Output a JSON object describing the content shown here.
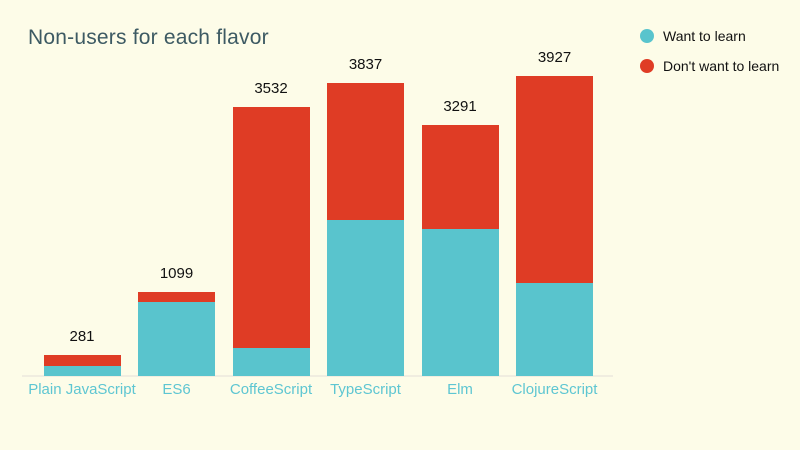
{
  "header": {
    "title": "Non-users for each flavor"
  },
  "legend": {
    "position": "top-right",
    "items": [
      {
        "label": "Want to learn",
        "color": "#59c4cd"
      },
      {
        "label": "Don't want to learn",
        "color": "#df3c25"
      }
    ]
  },
  "chart_data": {
    "type": "bar",
    "stacked": true,
    "title": "Non-users for each flavor",
    "categories": [
      "Plain JavaScript",
      "ES6",
      "CoffeeScript",
      "TypeScript",
      "Elm",
      "ClojureScript"
    ],
    "series": [
      {
        "name": "Want to learn",
        "color": "#59c4cd",
        "values": [
          135,
          968,
          370,
          2050,
          1930,
          1220
        ]
      },
      {
        "name": "Don't want to learn",
        "color": "#df3c25",
        "values": [
          146,
          131,
          3162,
          1787,
          1361,
          2707
        ]
      }
    ],
    "totals": [
      281,
      1099,
      3532,
      3837,
      3291,
      3927
    ],
    "xlabel": "",
    "ylabel": "",
    "ylim": [
      0,
      3927
    ],
    "grid": false,
    "legend_position": "top-right",
    "background": "#fdfce8",
    "title_color": "#3d5a63",
    "category_label_color": "#5ec6d2",
    "value_label_color": "#111111",
    "axis_line_color": "#f0ede0"
  }
}
